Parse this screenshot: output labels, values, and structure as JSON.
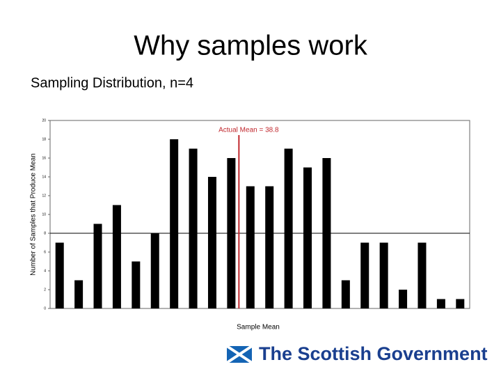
{
  "chart_data": {
    "type": "bar",
    "title": "Why samples work",
    "subtitle": "Sampling Distribution, n=4",
    "y_label": "Number of Samples that Produce Mean",
    "x_label": "Sample Mean",
    "categories": [
      null,
      null,
      null,
      null,
      null,
      null,
      null,
      null,
      null,
      null,
      null,
      null,
      null,
      null,
      null,
      null,
      null,
      null,
      null,
      null,
      null,
      null
    ],
    "values": [
      7,
      3,
      9,
      11,
      5,
      8,
      18,
      17,
      14,
      16,
      13,
      13,
      17,
      15,
      16,
      3,
      7,
      7,
      2,
      7,
      1,
      1
    ],
    "color": "#000000",
    "ylim": [
      0,
      20
    ],
    "yticks": [
      0,
      2,
      4,
      6,
      8,
      10,
      12,
      14,
      16,
      18,
      20
    ],
    "reference_line": 8,
    "mean_line": {
      "text": "Actual Mean = 38.8",
      "position": 9.4,
      "color": "#c0272d"
    }
  },
  "logo": {
    "text": "The Scottish Government"
  }
}
